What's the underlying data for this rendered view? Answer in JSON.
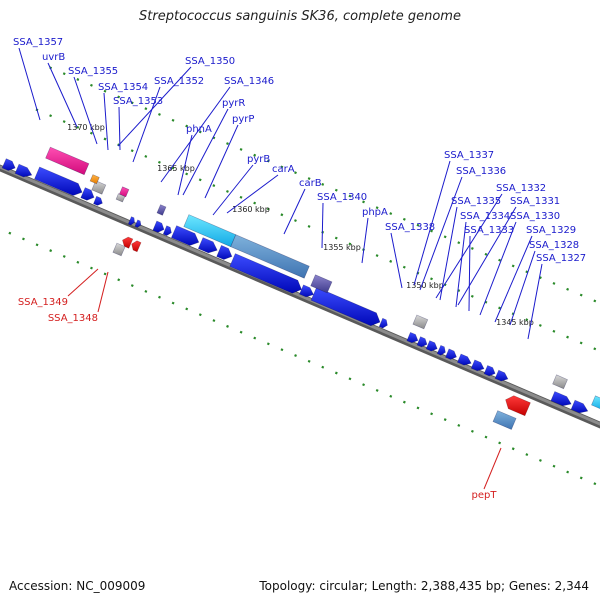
{
  "title": "Streptococcus sanguinis SK36, complete genome",
  "footer": {
    "accession": "Accession: NC_009009",
    "info": "Topology: circular; Length: 2,388,435 bp; Genes: 2,344"
  },
  "colors": {
    "gene_forward": "#0a14d8",
    "label_forward": "#1b1bcc",
    "gene_reverse": "#e01010",
    "label_reverse": "#d42020",
    "backbone": "#8c8c8c",
    "ruler_dots": "#2a8a2a"
  },
  "ruler": [
    {
      "label": "1370 kbp"
    },
    {
      "label": "1365 kbp"
    },
    {
      "label": "1360 kbp"
    },
    {
      "label": "1355 kbp"
    },
    {
      "label": "1350 kbp"
    },
    {
      "label": "1345 kbp"
    }
  ],
  "labels": [
    {
      "text": "SSA_1357",
      "strand": "forward"
    },
    {
      "text": "uvrB",
      "strand": "forward"
    },
    {
      "text": "SSA_1355",
      "strand": "forward"
    },
    {
      "text": "SSA_1354",
      "strand": "forward"
    },
    {
      "text": "SSA_1353",
      "strand": "forward"
    },
    {
      "text": "SSA_1352",
      "strand": "forward"
    },
    {
      "text": "SSA_1350",
      "strand": "forward"
    },
    {
      "text": "SSA_1346",
      "strand": "forward"
    },
    {
      "text": "pyrR",
      "strand": "forward"
    },
    {
      "text": "phnA",
      "strand": "forward"
    },
    {
      "text": "pyrP",
      "strand": "forward"
    },
    {
      "text": "pyrB",
      "strand": "forward"
    },
    {
      "text": "carA",
      "strand": "forward"
    },
    {
      "text": "carB",
      "strand": "forward"
    },
    {
      "text": "SSA_1340",
      "strand": "forward"
    },
    {
      "text": "phpA",
      "strand": "forward"
    },
    {
      "text": "SSA_1338",
      "strand": "forward"
    },
    {
      "text": "SSA_1337",
      "strand": "forward"
    },
    {
      "text": "SSA_1336",
      "strand": "forward"
    },
    {
      "text": "SSA_1332",
      "strand": "forward"
    },
    {
      "text": "SSA_1335",
      "strand": "forward"
    },
    {
      "text": "SSA_1331",
      "strand": "forward"
    },
    {
      "text": "SSA_1334",
      "strand": "forward"
    },
    {
      "text": "SSA_1330",
      "strand": "forward"
    },
    {
      "text": "SSA_1333",
      "strand": "forward"
    },
    {
      "text": "SSA_1329",
      "strand": "forward"
    },
    {
      "text": "SSA_1328",
      "strand": "forward"
    },
    {
      "text": "SSA_1327",
      "strand": "forward"
    },
    {
      "text": "SSA_1349",
      "strand": "reverse"
    },
    {
      "text": "SSA_1348",
      "strand": "reverse"
    },
    {
      "text": "pepT",
      "strand": "reverse"
    }
  ]
}
